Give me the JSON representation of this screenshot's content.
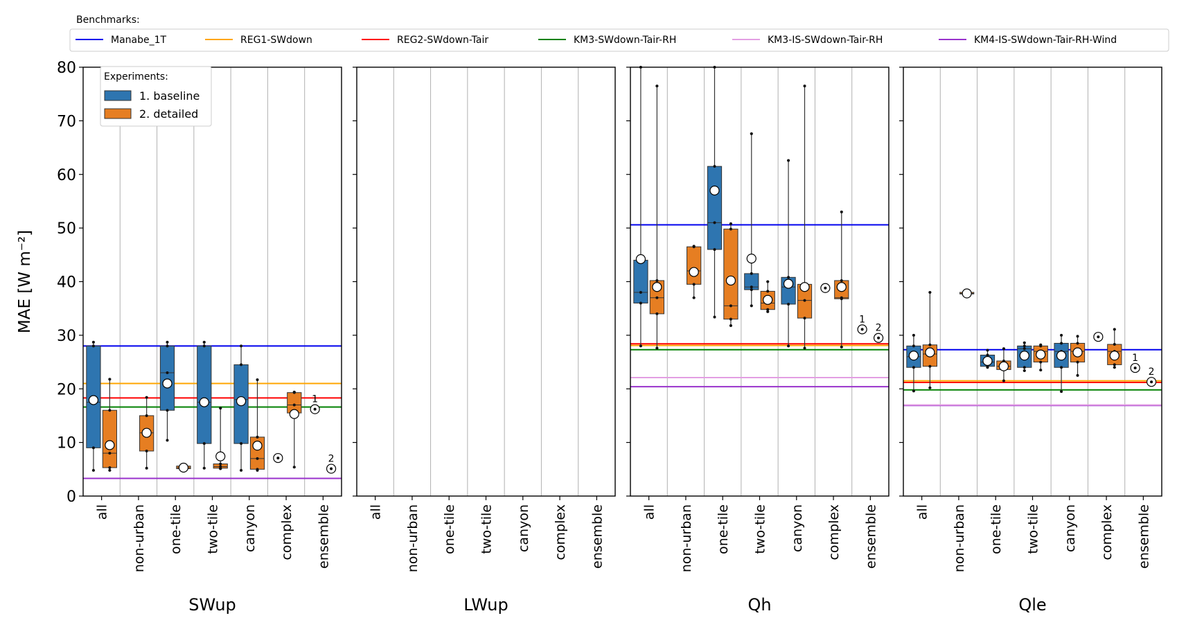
{
  "legend": {
    "benchmarks_title": "Benchmarks:",
    "experiments_title": "Experiments:"
  },
  "colors": {
    "baseline": "#2e75b0",
    "detailed": "#e67e22",
    "Manabe_1T": "#0000ee",
    "REG1-SWdown": "#ffa500",
    "REG2-SWdown-Tair": "#ff0000",
    "KM3-SWdown-Tair-RH": "#008000",
    "KM3-IS-SWdown-Tair-RH": "#e39ee3",
    "KM4-IS-SWdown-Tair-RH-Wind": "#9932cc"
  },
  "chart_data": {
    "type": "box",
    "ylabel": "MAE [W m⁻²]",
    "ylim": [
      0,
      80
    ],
    "yticks": [
      0,
      10,
      20,
      30,
      40,
      50,
      60,
      70,
      80
    ],
    "categories": [
      "all",
      "non-urban",
      "one-tile",
      "two-tile",
      "canyon",
      "complex",
      "ensemble"
    ],
    "experiments": [
      "1. baseline",
      "2. detailed"
    ],
    "benchmark_names": [
      "Manabe_1T",
      "REG1-SWdown",
      "REG2-SWdown-Tair",
      "KM3-SWdown-Tair-RH",
      "KM3-IS-SWdown-Tair-RH",
      "KM4-IS-SWdown-Tair-RH-Wind"
    ],
    "panels": [
      {
        "name": "SWup",
        "benchmarks": {
          "Manabe_1T": 28.0,
          "REG1-SWdown": 21.0,
          "REG2-SWdown-Tair": 18.3,
          "KM3-SWdown-Tair-RH": 16.6,
          "KM4-IS-SWdown-Tair-RH-Wind": 3.3
        },
        "boxes": [
          {
            "category": "all",
            "exp": 0,
            "min": 4.8,
            "q1": 9.0,
            "median": 17.5,
            "q3": 28.0,
            "max": 28.7,
            "mean": 17.9
          },
          {
            "category": "all",
            "exp": 1,
            "min": 4.8,
            "q1": 5.3,
            "median": 8.0,
            "q3": 16.0,
            "max": 21.8,
            "mean": 9.5
          },
          {
            "category": "non-urban",
            "exp": 1,
            "min": 5.2,
            "q1": 8.4,
            "median": 11.8,
            "q3": 15.0,
            "max": 18.4,
            "mean": 11.8
          },
          {
            "category": "one-tile",
            "exp": 0,
            "min": 10.4,
            "q1": 16.0,
            "median": 23.0,
            "q3": 28.0,
            "max": 28.7,
            "mean": 21.0
          },
          {
            "category": "one-tile",
            "exp": 1,
            "min": 4.9,
            "q1": 5.1,
            "median": 5.3,
            "q3": 5.6,
            "max": 5.8,
            "mean": 5.3
          },
          {
            "category": "two-tile",
            "exp": 0,
            "min": 5.2,
            "q1": 9.8,
            "median": 17.5,
            "q3": 28.0,
            "max": 28.7,
            "mean": 17.5
          },
          {
            "category": "two-tile",
            "exp": 1,
            "min": 5.1,
            "q1": 5.2,
            "median": 5.5,
            "q3": 6.0,
            "max": 16.4,
            "mean": 7.4
          },
          {
            "category": "canyon",
            "exp": 0,
            "min": 4.8,
            "q1": 9.8,
            "median": 18.0,
            "q3": 24.5,
            "max": 28.0,
            "mean": 17.7
          },
          {
            "category": "canyon",
            "exp": 1,
            "min": 4.8,
            "q1": 5.0,
            "median": 7.0,
            "q3": 11.0,
            "max": 21.7,
            "mean": 9.4
          },
          {
            "category": "complex",
            "exp": 0,
            "min": 7.1,
            "q1": 7.1,
            "median": 7.1,
            "q3": 7.1,
            "max": 7.1,
            "mean": 7.1
          },
          {
            "category": "complex",
            "exp": 1,
            "min": 5.4,
            "q1": 15.5,
            "median": 17.0,
            "q3": 19.3,
            "max": 19.4,
            "mean": 15.3
          },
          {
            "category": "ensemble",
            "exp": 0,
            "min": 16.2,
            "q1": 16.2,
            "median": 16.2,
            "q3": 16.2,
            "max": 16.2,
            "mean": 16.2
          },
          {
            "category": "ensemble",
            "exp": 1,
            "min": 5.1,
            "q1": 5.1,
            "median": 5.1,
            "q3": 5.1,
            "max": 5.1,
            "mean": 5.1
          }
        ]
      },
      {
        "name": "LWup",
        "benchmarks": {},
        "boxes": []
      },
      {
        "name": "Qh",
        "benchmarks": {
          "Manabe_1T": 50.6,
          "REG2-SWdown-Tair": 28.4,
          "REG1-SWdown": 28.1,
          "KM3-SWdown-Tair-RH": 27.3,
          "KM3-IS-SWdown-Tair-RH": 22.1,
          "KM4-IS-SWdown-Tair-RH-Wind": 20.4
        },
        "boxes": [
          {
            "category": "all",
            "exp": 0,
            "min": 28.0,
            "q1": 36.0,
            "median": 38.0,
            "q3": 44.0,
            "max": 80.0,
            "mean": 44.2
          },
          {
            "category": "all",
            "exp": 1,
            "min": 27.6,
            "q1": 34.0,
            "median": 37.0,
            "q3": 40.2,
            "max": 76.5,
            "mean": 39.0
          },
          {
            "category": "non-urban",
            "exp": 1,
            "min": 37.0,
            "q1": 39.5,
            "median": 42.0,
            "q3": 46.5,
            "max": 46.6,
            "mean": 41.8
          },
          {
            "category": "one-tile",
            "exp": 0,
            "min": 33.4,
            "q1": 46.0,
            "median": 51.0,
            "q3": 61.5,
            "max": 80.0,
            "mean": 57.0
          },
          {
            "category": "one-tile",
            "exp": 1,
            "min": 31.8,
            "q1": 33.0,
            "median": 35.5,
            "q3": 49.8,
            "max": 50.8,
            "mean": 40.2
          },
          {
            "category": "two-tile",
            "exp": 0,
            "min": 35.5,
            "q1": 38.5,
            "median": 39.0,
            "q3": 41.5,
            "max": 67.6,
            "mean": 44.3
          },
          {
            "category": "two-tile",
            "exp": 1,
            "min": 34.4,
            "q1": 34.8,
            "median": 36.0,
            "q3": 38.2,
            "max": 40.0,
            "mean": 36.6
          },
          {
            "category": "canyon",
            "exp": 0,
            "min": 28.0,
            "q1": 35.8,
            "median": 39.0,
            "q3": 40.8,
            "max": 62.6,
            "mean": 39.6
          },
          {
            "category": "canyon",
            "exp": 1,
            "min": 27.6,
            "q1": 33.2,
            "median": 36.5,
            "q3": 39.5,
            "max": 76.5,
            "mean": 39.0
          },
          {
            "category": "complex",
            "exp": 0,
            "min": 38.8,
            "q1": 38.8,
            "median": 38.8,
            "q3": 38.8,
            "max": 38.8,
            "mean": 38.8
          },
          {
            "category": "complex",
            "exp": 1,
            "min": 27.8,
            "q1": 36.8,
            "median": 37.0,
            "q3": 40.2,
            "max": 53.0,
            "mean": 39.0
          },
          {
            "category": "ensemble",
            "exp": 0,
            "min": 31.1,
            "q1": 31.1,
            "median": 31.1,
            "q3": 31.1,
            "max": 31.1,
            "mean": 31.1
          },
          {
            "category": "ensemble",
            "exp": 1,
            "min": 29.5,
            "q1": 29.5,
            "median": 29.5,
            "q3": 29.5,
            "max": 29.5,
            "mean": 29.5
          }
        ]
      },
      {
        "name": "Qle",
        "benchmarks": {
          "Manabe_1T": 27.3,
          "REG1-SWdown": 21.5,
          "REG2-SWdown-Tair": 21.2,
          "KM3-SWdown-Tair-RH": 19.8,
          "KM3-IS-SWdown-Tair-RH": 17.0,
          "KM4-IS-SWdown-Tair-RH-Wind": 16.9
        },
        "boxes": [
          {
            "category": "all",
            "exp": 0,
            "min": 19.6,
            "q1": 24.0,
            "median": 26.0,
            "q3": 28.0,
            "max": 30.0,
            "mean": 26.2
          },
          {
            "category": "all",
            "exp": 1,
            "min": 20.2,
            "q1": 24.2,
            "median": 26.5,
            "q3": 28.2,
            "max": 38.0,
            "mean": 26.8
          },
          {
            "category": "non-urban",
            "exp": 1,
            "min": 37.6,
            "q1": 37.7,
            "median": 37.8,
            "q3": 38.0,
            "max": 38.2,
            "mean": 37.8
          },
          {
            "category": "one-tile",
            "exp": 0,
            "min": 24.0,
            "q1": 24.2,
            "median": 25.0,
            "q3": 26.3,
            "max": 27.2,
            "mean": 25.2
          },
          {
            "category": "one-tile",
            "exp": 1,
            "min": 21.5,
            "q1": 23.6,
            "median": 24.2,
            "q3": 25.2,
            "max": 27.5,
            "mean": 24.2
          },
          {
            "category": "two-tile",
            "exp": 0,
            "min": 23.4,
            "q1": 24.0,
            "median": 27.5,
            "q3": 28.0,
            "max": 28.6,
            "mean": 26.2
          },
          {
            "category": "two-tile",
            "exp": 1,
            "min": 23.5,
            "q1": 25.0,
            "median": 27.0,
            "q3": 28.0,
            "max": 28.2,
            "mean": 26.4
          },
          {
            "category": "canyon",
            "exp": 0,
            "min": 19.5,
            "q1": 24.0,
            "median": 27.0,
            "q3": 28.5,
            "max": 30.0,
            "mean": 26.2
          },
          {
            "category": "canyon",
            "exp": 1,
            "min": 22.5,
            "q1": 25.0,
            "median": 27.0,
            "q3": 28.5,
            "max": 29.8,
            "mean": 26.8
          },
          {
            "category": "complex",
            "exp": 0,
            "min": 29.7,
            "q1": 29.7,
            "median": 29.7,
            "q3": 29.7,
            "max": 29.7,
            "mean": 29.7
          },
          {
            "category": "complex",
            "exp": 1,
            "min": 24.0,
            "q1": 24.5,
            "median": 27.0,
            "q3": 28.3,
            "max": 31.1,
            "mean": 26.2
          },
          {
            "category": "ensemble",
            "exp": 0,
            "min": 23.9,
            "q1": 23.9,
            "median": 23.9,
            "q3": 23.9,
            "max": 23.9,
            "mean": 23.9
          },
          {
            "category": "ensemble",
            "exp": 1,
            "min": 21.3,
            "q1": 21.3,
            "median": 21.3,
            "q3": 21.3,
            "max": 21.3,
            "mean": 21.3
          }
        ]
      }
    ],
    "annotations": [
      {
        "panel": "SWup",
        "category": "ensemble",
        "exp": 0,
        "text": "1"
      },
      {
        "panel": "SWup",
        "category": "ensemble",
        "exp": 1,
        "text": "2"
      },
      {
        "panel": "Qh",
        "category": "ensemble",
        "exp": 0,
        "text": "1"
      },
      {
        "panel": "Qh",
        "category": "ensemble",
        "exp": 1,
        "text": "2"
      },
      {
        "panel": "Qle",
        "category": "ensemble",
        "exp": 0,
        "text": "1"
      },
      {
        "panel": "Qle",
        "category": "ensemble",
        "exp": 1,
        "text": "2"
      }
    ]
  }
}
